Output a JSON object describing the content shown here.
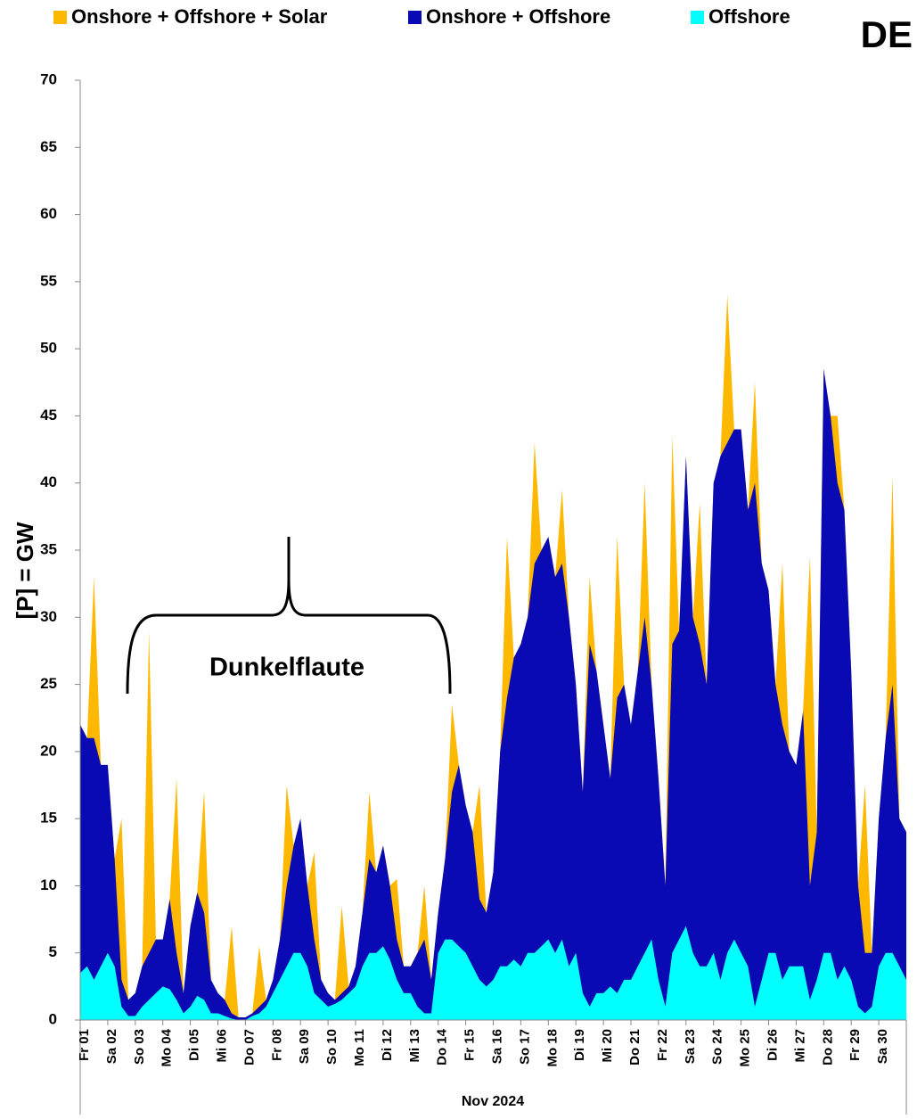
{
  "chart_data": {
    "type": "area",
    "title": "DE",
    "ylabel": "[P] = GW",
    "xlabel": "Nov 2024",
    "annotation": "Dunkelflaute",
    "xlim": [
      0,
      30
    ],
    "ylim": [
      0,
      70
    ],
    "yticks": [
      0,
      5,
      10,
      15,
      20,
      25,
      30,
      35,
      40,
      45,
      50,
      55,
      60,
      65,
      70
    ],
    "grid": false,
    "xticks": [
      {
        "value": 0,
        "label": "Fr 01"
      },
      {
        "value": 1,
        "label": "Sa 02"
      },
      {
        "value": 2,
        "label": "So 03"
      },
      {
        "value": 3,
        "label": "Mo 04"
      },
      {
        "value": 4,
        "label": "Di 05"
      },
      {
        "value": 5,
        "label": "Mi 06"
      },
      {
        "value": 6,
        "label": "Do 07"
      },
      {
        "value": 7,
        "label": "Fr 08"
      },
      {
        "value": 8,
        "label": "Sa 09"
      },
      {
        "value": 9,
        "label": "So 10"
      },
      {
        "value": 10,
        "label": "Mo 11"
      },
      {
        "value": 11,
        "label": "Di 12"
      },
      {
        "value": 12,
        "label": "Mi 13"
      },
      {
        "value": 13,
        "label": "Do 14"
      },
      {
        "value": 14,
        "label": "Fr 15"
      },
      {
        "value": 15,
        "label": "Sa 16"
      },
      {
        "value": 16,
        "label": "So 17"
      },
      {
        "value": 17,
        "label": "Mo 18"
      },
      {
        "value": 18,
        "label": "Di 19"
      },
      {
        "value": 19,
        "label": "Mi 20"
      },
      {
        "value": 20,
        "label": "Do 21"
      },
      {
        "value": 21,
        "label": "Fr 22"
      },
      {
        "value": 22,
        "label": "Sa 23"
      },
      {
        "value": 23,
        "label": "So 24"
      },
      {
        "value": 24,
        "label": "Mo 25"
      },
      {
        "value": 25,
        "label": "Di 26"
      },
      {
        "value": 26,
        "label": "Mi 27"
      },
      {
        "value": 27,
        "label": "Do 28"
      },
      {
        "value": 28,
        "label": "Fr 29"
      },
      {
        "value": 29,
        "label": "Sa 30"
      }
    ],
    "x": [
      0,
      0.25,
      0.5,
      0.75,
      1,
      1.25,
      1.5,
      1.75,
      2,
      2.25,
      2.5,
      2.75,
      3,
      3.25,
      3.5,
      3.75,
      4,
      4.25,
      4.5,
      4.75,
      5,
      5.25,
      5.5,
      5.75,
      6,
      6.25,
      6.5,
      6.75,
      7,
      7.25,
      7.5,
      7.75,
      8,
      8.25,
      8.5,
      8.75,
      9,
      9.25,
      9.5,
      9.75,
      10,
      10.25,
      10.5,
      10.75,
      11,
      11.25,
      11.5,
      11.75,
      12,
      12.25,
      12.5,
      12.75,
      13,
      13.25,
      13.5,
      13.75,
      14,
      14.25,
      14.5,
      14.75,
      15,
      15.25,
      15.5,
      15.75,
      16,
      16.25,
      16.5,
      16.75,
      17,
      17.25,
      17.5,
      17.75,
      18,
      18.25,
      18.5,
      18.75,
      19,
      19.25,
      19.5,
      19.75,
      20,
      20.25,
      20.5,
      20.75,
      21,
      21.25,
      21.5,
      21.75,
      22,
      22.25,
      22.5,
      22.75,
      23,
      23.25,
      23.5,
      23.75,
      24,
      24.25,
      24.5,
      24.75,
      25,
      25.25,
      25.5,
      25.75,
      26,
      26.25,
      26.5,
      26.75,
      27,
      27.25,
      27.5,
      27.75,
      28,
      28.25,
      28.5,
      28.75,
      29,
      29.25,
      29.5,
      29.75,
      30
    ],
    "series": [
      {
        "name": "Onshore + Offshore + Solar",
        "color": "#FFB800",
        "values": [
          22,
          21,
          33,
          19,
          19,
          12,
          15,
          1.5,
          2,
          4,
          29,
          6,
          6,
          9,
          18,
          2,
          7,
          9.5,
          17,
          3,
          2,
          1.5,
          7,
          0.2,
          0.2,
          0.5,
          5.5,
          1.5,
          3,
          6,
          17.5,
          13,
          15,
          10,
          12.5,
          3,
          2,
          1.5,
          8.5,
          2.5,
          4,
          8,
          17,
          11,
          13,
          10,
          10.5,
          4,
          4,
          5,
          10,
          3,
          8,
          12,
          23.5,
          19,
          16,
          14,
          17.5,
          8,
          11,
          20,
          36,
          27,
          28,
          30,
          43,
          35,
          36,
          33,
          39.5,
          30,
          25,
          17,
          33,
          26,
          22,
          18,
          36,
          25,
          22,
          26,
          40,
          25,
          18,
          10,
          43.5,
          29,
          42,
          30,
          38.5,
          25,
          40,
          42,
          54,
          44,
          44,
          38,
          47.5,
          34,
          32,
          25,
          34,
          20,
          19,
          23,
          34.5,
          14,
          48.5,
          45,
          45,
          38,
          26,
          10,
          17.5,
          5,
          15,
          21,
          40.5,
          15,
          14
        ]
      },
      {
        "name": "Onshore + Offshore",
        "color": "#0A0AB4",
        "values": [
          22,
          21,
          21,
          19,
          19,
          12,
          3,
          1.5,
          2,
          4,
          5,
          6,
          6,
          9,
          5,
          2,
          7,
          9.5,
          8,
          3,
          2,
          1.5,
          0.5,
          0.2,
          0.2,
          0.5,
          1,
          1.5,
          3,
          6,
          10,
          13,
          15,
          10,
          6,
          3,
          2,
          1.5,
          2,
          2.5,
          4,
          8,
          12,
          11,
          13,
          10,
          6,
          4,
          4,
          5,
          6,
          3,
          8,
          12,
          17,
          19,
          16,
          14,
          9,
          8,
          11,
          20,
          24,
          27,
          28,
          30,
          34,
          35,
          36,
          33,
          34,
          30,
          25,
          17,
          28,
          26,
          22,
          18,
          24,
          25,
          22,
          26,
          30,
          25,
          18,
          10,
          28,
          29,
          42,
          30,
          28,
          25,
          40,
          42,
          43,
          44,
          44,
          38,
          40,
          34,
          32,
          25,
          22,
          20,
          19,
          23,
          10,
          14,
          48.5,
          45,
          40,
          38,
          26,
          10,
          5,
          5,
          15,
          21,
          25,
          15,
          14
        ]
      },
      {
        "name": "Offshore",
        "color": "#00FFFF",
        "values": [
          3.5,
          4,
          3,
          4,
          5,
          4,
          1,
          0.3,
          0.3,
          1,
          1.5,
          2,
          2.5,
          2.3,
          1.5,
          0.5,
          1,
          1.8,
          1.5,
          0.5,
          0.5,
          0.3,
          0.1,
          0,
          0,
          0.3,
          0.5,
          1,
          2,
          3,
          4,
          5,
          5,
          4,
          2,
          1.5,
          1,
          1.2,
          1.5,
          2,
          2.5,
          4,
          5,
          5,
          5.5,
          4.5,
          3,
          2,
          2,
          1,
          0.5,
          0.5,
          5,
          6,
          6,
          5.5,
          5,
          4,
          3,
          2.5,
          3,
          4,
          4,
          4.5,
          4,
          5,
          5,
          5.5,
          6,
          5,
          6,
          4,
          5,
          2,
          1,
          2,
          2,
          2.5,
          2,
          3,
          3,
          4,
          5,
          6,
          3,
          1,
          5,
          6,
          7,
          5,
          4,
          4,
          5,
          3,
          5,
          6,
          5,
          4,
          1,
          3,
          5,
          5,
          3,
          4,
          4,
          4,
          1.5,
          3,
          5,
          5,
          3,
          4,
          3,
          1,
          0.5,
          1,
          4,
          5,
          5,
          4,
          3
        ]
      }
    ]
  }
}
